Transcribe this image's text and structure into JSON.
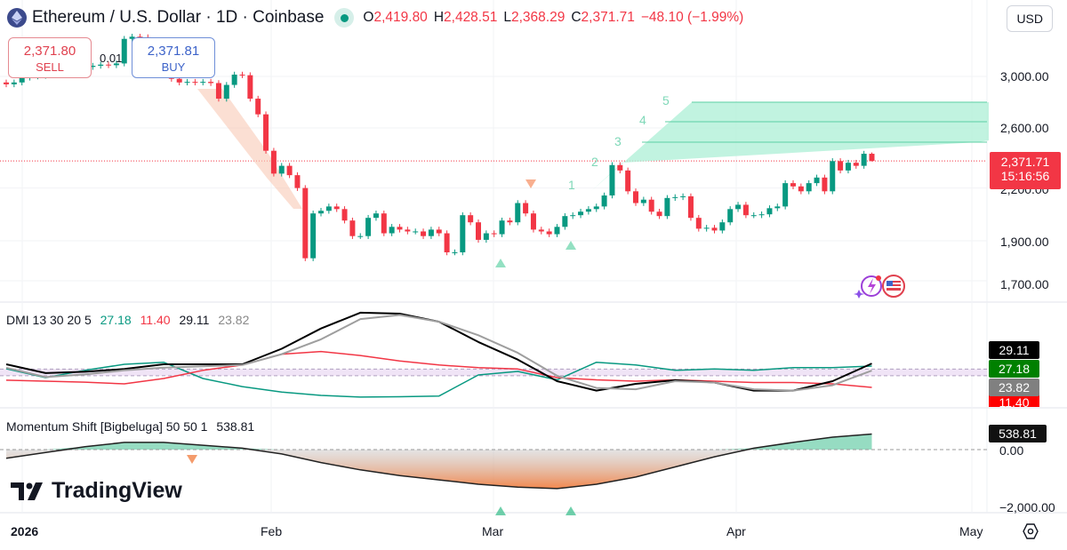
{
  "header": {
    "symbol_title": "Ethereum / U.S. Dollar · 1D · Coinbase",
    "open_label": "O",
    "open": "2,419.80",
    "high_label": "H",
    "high": "2,428.51",
    "low_label": "L",
    "low": "2,368.29",
    "close_label": "C",
    "close": "2,371.71",
    "change": "−48.10 (−1.99%)"
  },
  "trade": {
    "sell_price": "2,371.80",
    "sell_label": "SELL",
    "spread": "0.01",
    "buy_price": "2,371.81",
    "buy_label": "BUY"
  },
  "currency_button": "USD",
  "price_axis": {
    "labels": [
      "3,000.00",
      "2,600.00",
      "2,200.00",
      "1,900.00",
      "1,700.00"
    ],
    "current_price": "2,371.71",
    "countdown": "15:16:56"
  },
  "time_axis": {
    "labels": [
      "2026",
      "Feb",
      "Mar",
      "Apr",
      "May"
    ]
  },
  "dmi": {
    "title": "DMI 13 30 20 5",
    "plus_di": "27.18",
    "minus_di": "11.40",
    "adx": "29.11",
    "adxr": "23.82",
    "colors": {
      "plus_di": "#089981",
      "minus_di": "#f23645",
      "adx": "#000000",
      "adxr": "#9e9e9e",
      "plus_tag": "#008000",
      "minus_tag": "#ff0000",
      "adx_tag": "#000000",
      "adxr_tag": "#808080"
    }
  },
  "momentum": {
    "title": "Momentum Shift [Bigbeluga] 50 50 1",
    "value": "538.81",
    "axis_labels": [
      "0.00",
      "−2,000.00"
    ]
  },
  "annotations": {
    "wave_labels": [
      "1",
      "2",
      "3",
      "4",
      "5"
    ]
  },
  "branding": {
    "logo_text": "TradingView"
  },
  "icons": {
    "settings": "gear-icon",
    "symbol": "ethereum-logo-icon",
    "market_status": "live-dot-icon"
  },
  "colors": {
    "up": "#089981",
    "down": "#f23645",
    "target_zone": "#b2f0d8",
    "sell_zone": "#f9c9b5",
    "dmi_band": "#ead9f2"
  },
  "chart_data": [
    {
      "type": "candlestick",
      "title": "Ethereum / U.S. Dollar · 1D · Coinbase",
      "y_scale": "log",
      "ylim": [
        1650,
        3400
      ],
      "grid": true,
      "start_date": "2025-12-30",
      "interval": "1D",
      "first_open": 2950,
      "last_candle": {
        "open": 2419.8,
        "high": 2428.51,
        "low": 2368.29,
        "close": 2371.71
      },
      "closes": [
        2935,
        2950,
        2990,
        3000,
        3005,
        3010,
        3020,
        3030,
        3040,
        3060,
        3080,
        3090,
        3100,
        3095,
        3110,
        3330,
        3350,
        3345,
        3280,
        3150,
        3050,
        2980,
        2950,
        2955,
        2950,
        2955,
        2945,
        2820,
        2930,
        3015,
        3010,
        2820,
        2700,
        2440,
        2290,
        2340,
        2280,
        2200,
        1810,
        2050,
        2065,
        2090,
        2075,
        2010,
        1925,
        1925,
        2025,
        2050,
        1940,
        1975,
        1960,
        1950,
        1950,
        1925,
        1960,
        1940,
        1840,
        1840,
        2040,
        2000,
        1905,
        1940,
        1935,
        2010,
        2000,
        2110,
        2050,
        1960,
        1950,
        1935,
        1975,
        2035,
        2040,
        2060,
        2075,
        2090,
        2155,
        2345,
        2310,
        2180,
        2110,
        2130,
        2060,
        2035,
        2140,
        2145,
        2150,
        2025,
        1965,
        1970,
        1955,
        2000,
        2075,
        2100,
        2040,
        2040,
        2045,
        2080,
        2090,
        2230,
        2210,
        2180,
        2230,
        2265,
        2180,
        2371,
        2310,
        2360,
        2340,
        2419.8,
        2371.71
      ]
    },
    {
      "type": "line",
      "title": "DMI 13 30 20 5",
      "ylim": [
        -3,
        70
      ],
      "x": [
        "2025-12-30",
        "2026-01-04",
        "2026-01-09",
        "2026-01-14",
        "2026-01-19",
        "2026-01-24",
        "2026-01-29",
        "2026-02-03",
        "2026-02-08",
        "2026-02-13",
        "2026-02-18",
        "2026-02-23",
        "2026-02-28",
        "2026-03-05",
        "2026-03-10",
        "2026-03-15",
        "2026-03-20",
        "2026-03-25",
        "2026-03-30",
        "2026-04-04",
        "2026-04-09",
        "2026-04-14",
        "2026-04-19"
      ],
      "series": [
        {
          "key": "plus_di",
          "values": [
            25.2,
            18.6,
            24,
            28.5,
            30,
            18,
            12,
            8,
            5.5,
            4.2,
            4.5,
            5,
            20.6,
            23.2,
            17,
            30,
            28,
            24,
            25,
            24,
            26,
            26,
            27.18
          ]
        },
        {
          "key": "minus_di",
          "values": [
            16.7,
            16,
            15.3,
            14,
            18,
            24,
            28,
            36,
            38,
            35,
            31,
            28,
            26,
            25,
            18.6,
            17,
            16,
            17,
            16,
            15,
            15,
            14,
            11.4
          ]
        },
        {
          "key": "adx",
          "values": [
            28.5,
            22,
            23,
            25,
            28.5,
            28.5,
            28.5,
            40,
            55,
            66.7,
            66,
            60,
            45,
            32,
            16,
            9,
            14,
            16.7,
            15,
            9,
            9,
            16,
            29.11
          ]
        },
        {
          "key": "adxr",
          "values": [
            26,
            19,
            21,
            24,
            26,
            27,
            28,
            36,
            47,
            62,
            65,
            60,
            50,
            37,
            20,
            11,
            10,
            16,
            15,
            10,
            9,
            13,
            23.82
          ]
        }
      ],
      "band": [
        20,
        25
      ]
    },
    {
      "type": "area",
      "title": "Momentum Shift [Bigbeluga] 50 50 1",
      "ylim": [
        -2100,
        1400
      ],
      "x": [
        "2025-12-30",
        "2026-01-04",
        "2026-01-09",
        "2026-01-14",
        "2026-01-19",
        "2026-01-24",
        "2026-01-29",
        "2026-02-03",
        "2026-02-08",
        "2026-02-13",
        "2026-02-18",
        "2026-02-23",
        "2026-02-28",
        "2026-03-05",
        "2026-03-10",
        "2026-03-15",
        "2026-03-20",
        "2026-03-25",
        "2026-03-30",
        "2026-04-04",
        "2026-04-09",
        "2026-04-14",
        "2026-04-19"
      ],
      "values": [
        -300,
        -100,
        100,
        250,
        250,
        150,
        50,
        -150,
        -450,
        -700,
        -900,
        -1050,
        -1200,
        -1300,
        -1350,
        -1200,
        -950,
        -600,
        -250,
        50,
        250,
        430,
        538.81
      ]
    }
  ]
}
